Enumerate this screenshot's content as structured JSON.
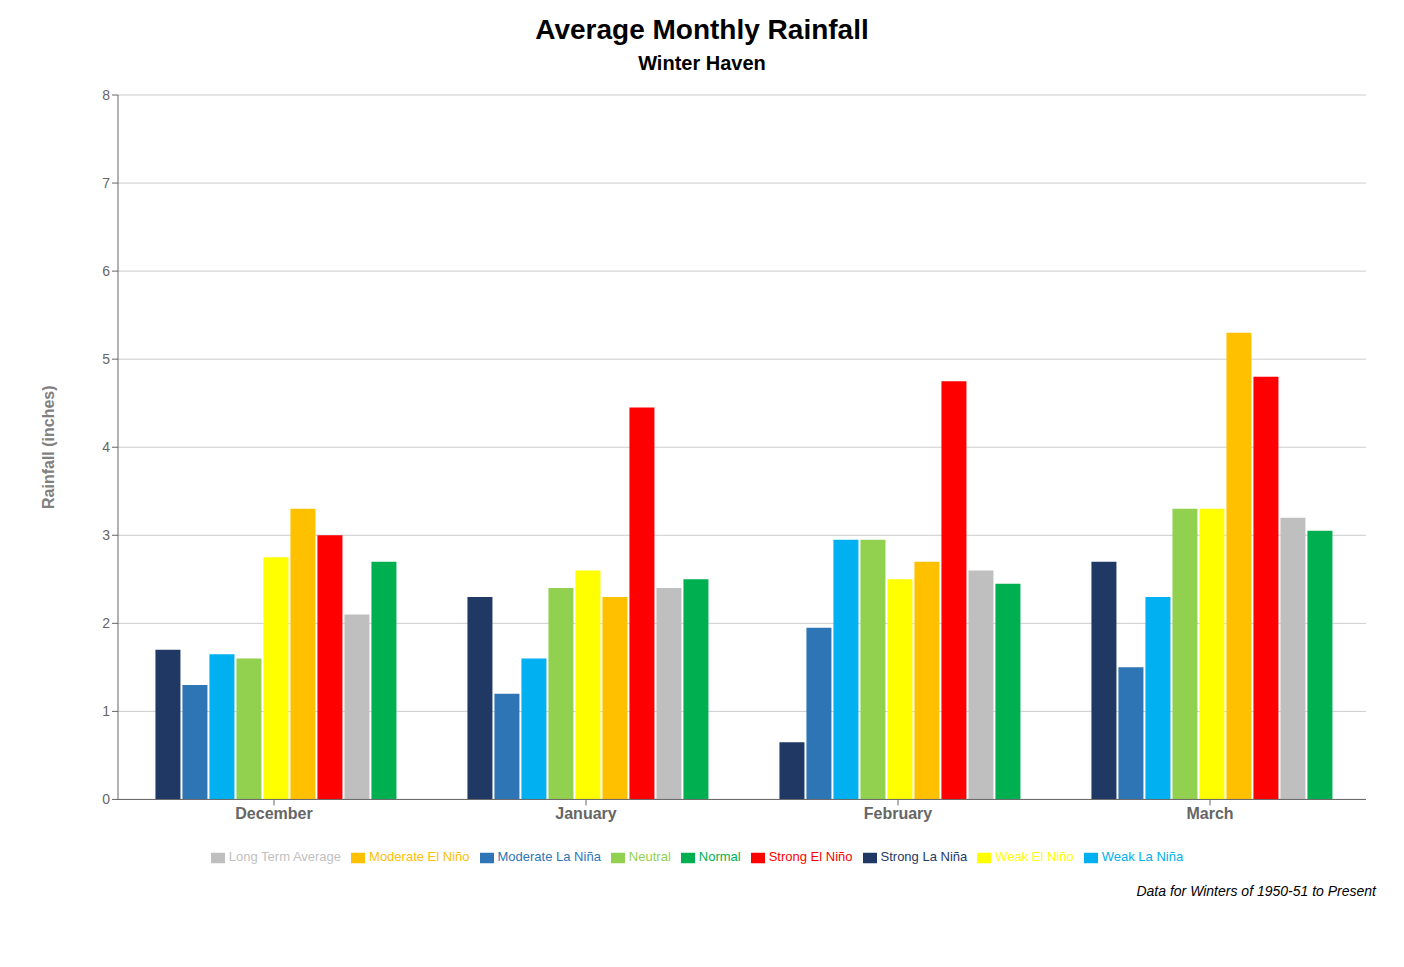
{
  "chart_data": {
    "type": "bar",
    "title": "Average Monthly Rainfall",
    "subtitle": "Winter Haven",
    "ylabel": "Rainfall (inches)",
    "footnote": "Data for Winters of 1950-51 to Present",
    "categories": [
      "December",
      "January",
      "February",
      "March"
    ],
    "series": [
      {
        "name": "Strong La Niña",
        "color": "#1f3864",
        "values": [
          1.7,
          2.3,
          0.65,
          2.7
        ]
      },
      {
        "name": "Moderate La Niña",
        "color": "#2e75b6",
        "values": [
          1.3,
          1.2,
          1.95,
          1.5
        ]
      },
      {
        "name": "Weak La Niña",
        "color": "#00b0f0",
        "values": [
          1.65,
          1.6,
          2.95,
          2.3
        ]
      },
      {
        "name": "Neutral",
        "color": "#92d050",
        "values": [
          1.6,
          2.4,
          2.95,
          3.3
        ]
      },
      {
        "name": "Weak El Niño",
        "color": "#ffff00",
        "values": [
          2.75,
          2.6,
          2.5,
          3.3
        ]
      },
      {
        "name": "Moderate El Niño",
        "color": "#ffc000",
        "values": [
          3.3,
          2.3,
          2.7,
          5.3
        ]
      },
      {
        "name": "Strong El Niño",
        "color": "#ff0000",
        "values": [
          3.0,
          4.45,
          4.75,
          4.8
        ]
      },
      {
        "name": "Long Term Average",
        "color": "#bfbfbf",
        "values": [
          2.1,
          2.4,
          2.6,
          3.2
        ]
      },
      {
        "name": "Normal",
        "color": "#00b050",
        "values": [
          2.7,
          2.5,
          2.45,
          3.05
        ]
      }
    ],
    "ylim": [
      0,
      8
    ],
    "yticks": [
      0,
      1,
      2,
      3,
      4,
      5,
      6,
      7,
      8
    ],
    "grid": true
  }
}
